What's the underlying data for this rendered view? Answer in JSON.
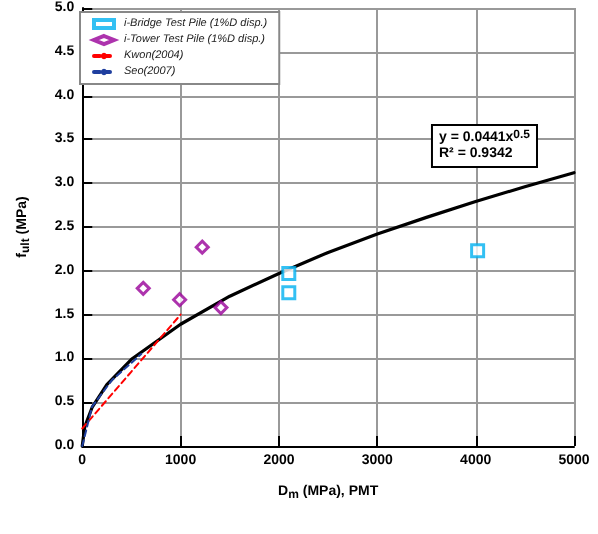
{
  "chart_data": {
    "type": "scatter",
    "xlabel": "D$_{m}$ (MPa), PMT",
    "ylabel": "f$_{ult}$ (MPa)",
    "xlim": [
      0,
      5000
    ],
    "xticks": [
      0,
      1000,
      2000,
      3000,
      4000,
      5000
    ],
    "ylim": [
      0,
      5
    ],
    "yticks": [
      {
        "value": 0,
        "label": "0.0"
      },
      {
        "value": 0.5,
        "label": "0.5"
      },
      {
        "value": 1,
        "label": "1.0"
      },
      {
        "value": 1.5,
        "label": "1.5"
      },
      {
        "value": 2,
        "label": "2.0"
      },
      {
        "value": 2.5,
        "label": "2.5"
      },
      {
        "value": 3,
        "label": "3.0"
      },
      {
        "value": 3.5,
        "label": "3.5"
      },
      {
        "value": 4,
        "label": "4.0"
      },
      {
        "value": 4.5,
        "label": "4.5"
      },
      {
        "value": 5,
        "label": "5.0"
      }
    ],
    "grid": true,
    "legend": "top left",
    "annotations": [
      "y = 0.0441x$^{0.5}$",
      "R² = 0.9342"
    ],
    "series": [
      {
        "name": "i-Bridge Test Pile (1%D disp.)",
        "marker": "square",
        "color": "#00b0f0",
        "x": [
          2100,
          2100,
          4020
        ],
        "values": [
          1.97,
          1.75,
          2.23
        ]
      },
      {
        "name": "i-Tower Test Pile (1%D disp.)",
        "marker": "diamond",
        "color": "#990099",
        "x": [
          620,
          990,
          1410,
          1220
        ],
        "values": [
          1.8,
          1.67,
          1.58,
          2.27
        ]
      },
      {
        "type": "line",
        "marker": "none",
        "line_style": "solid",
        "color": "#000000",
        "x": [
          0,
          25,
          100,
          250,
          500,
          1000,
          1500,
          2000,
          2500,
          3000,
          3500,
          4000,
          4500,
          5000
        ],
        "values": [
          0,
          0.22,
          0.44,
          0.7,
          0.99,
          1.39,
          1.71,
          1.97,
          2.21,
          2.42,
          2.61,
          2.79,
          2.96,
          3.12
        ]
      },
      {
        "name": "Kwon(2004)",
        "type": "line",
        "marker": "none",
        "line_style": "dashed",
        "color": "#ff0000",
        "x": [
          0,
          500,
          1000
        ],
        "values": [
          0.2,
          0.85,
          1.5
        ]
      },
      {
        "name": "Seo(2007)",
        "type": "line",
        "marker": "none",
        "line_style": "dashed",
        "color": "#1f3f9f",
        "x": [
          0,
          100,
          300,
          600
        ],
        "values": [
          0,
          0.45,
          0.75,
          1.05
        ]
      }
    ]
  }
}
